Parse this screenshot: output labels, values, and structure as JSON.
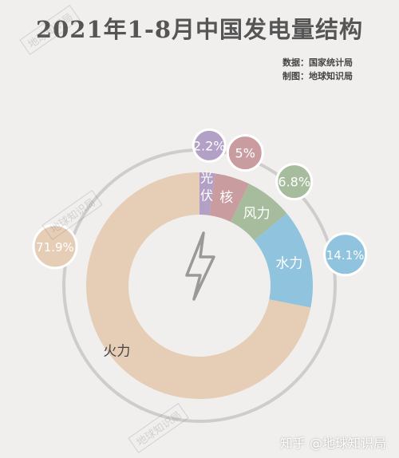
{
  "title": "2021年1-8月中国发电量结构",
  "source": {
    "data_line": "数据：国家统计局",
    "map_line": "制图：地球知识局"
  },
  "watermark": "地球知识局",
  "brand": "知乎 @地球知识局",
  "center_icon": "lightning-icon",
  "chart_data": {
    "type": "pie",
    "title": "2021年1-8月中国发电量结构",
    "unit": "%",
    "slices": [
      {
        "label": "光伏",
        "value": 2.2,
        "value_label": "2.2%",
        "color": "#b3a0c6",
        "label_color": "#ffffff"
      },
      {
        "label": "核",
        "value": 5.0,
        "value_label": "5%",
        "color": "#c99ca0",
        "label_color": "#ffffff"
      },
      {
        "label": "风力",
        "value": 6.8,
        "value_label": "6.8%",
        "color": "#a6bc9c",
        "label_color": "#ffffff"
      },
      {
        "label": "水力",
        "value": 14.1,
        "value_label": "14.1%",
        "color": "#8fc3de",
        "label_color": "#ffffff"
      },
      {
        "label": "火力",
        "value": 71.9,
        "value_label": "71.9%",
        "color": "#e6cdb6",
        "label_color": "#444444"
      }
    ]
  }
}
